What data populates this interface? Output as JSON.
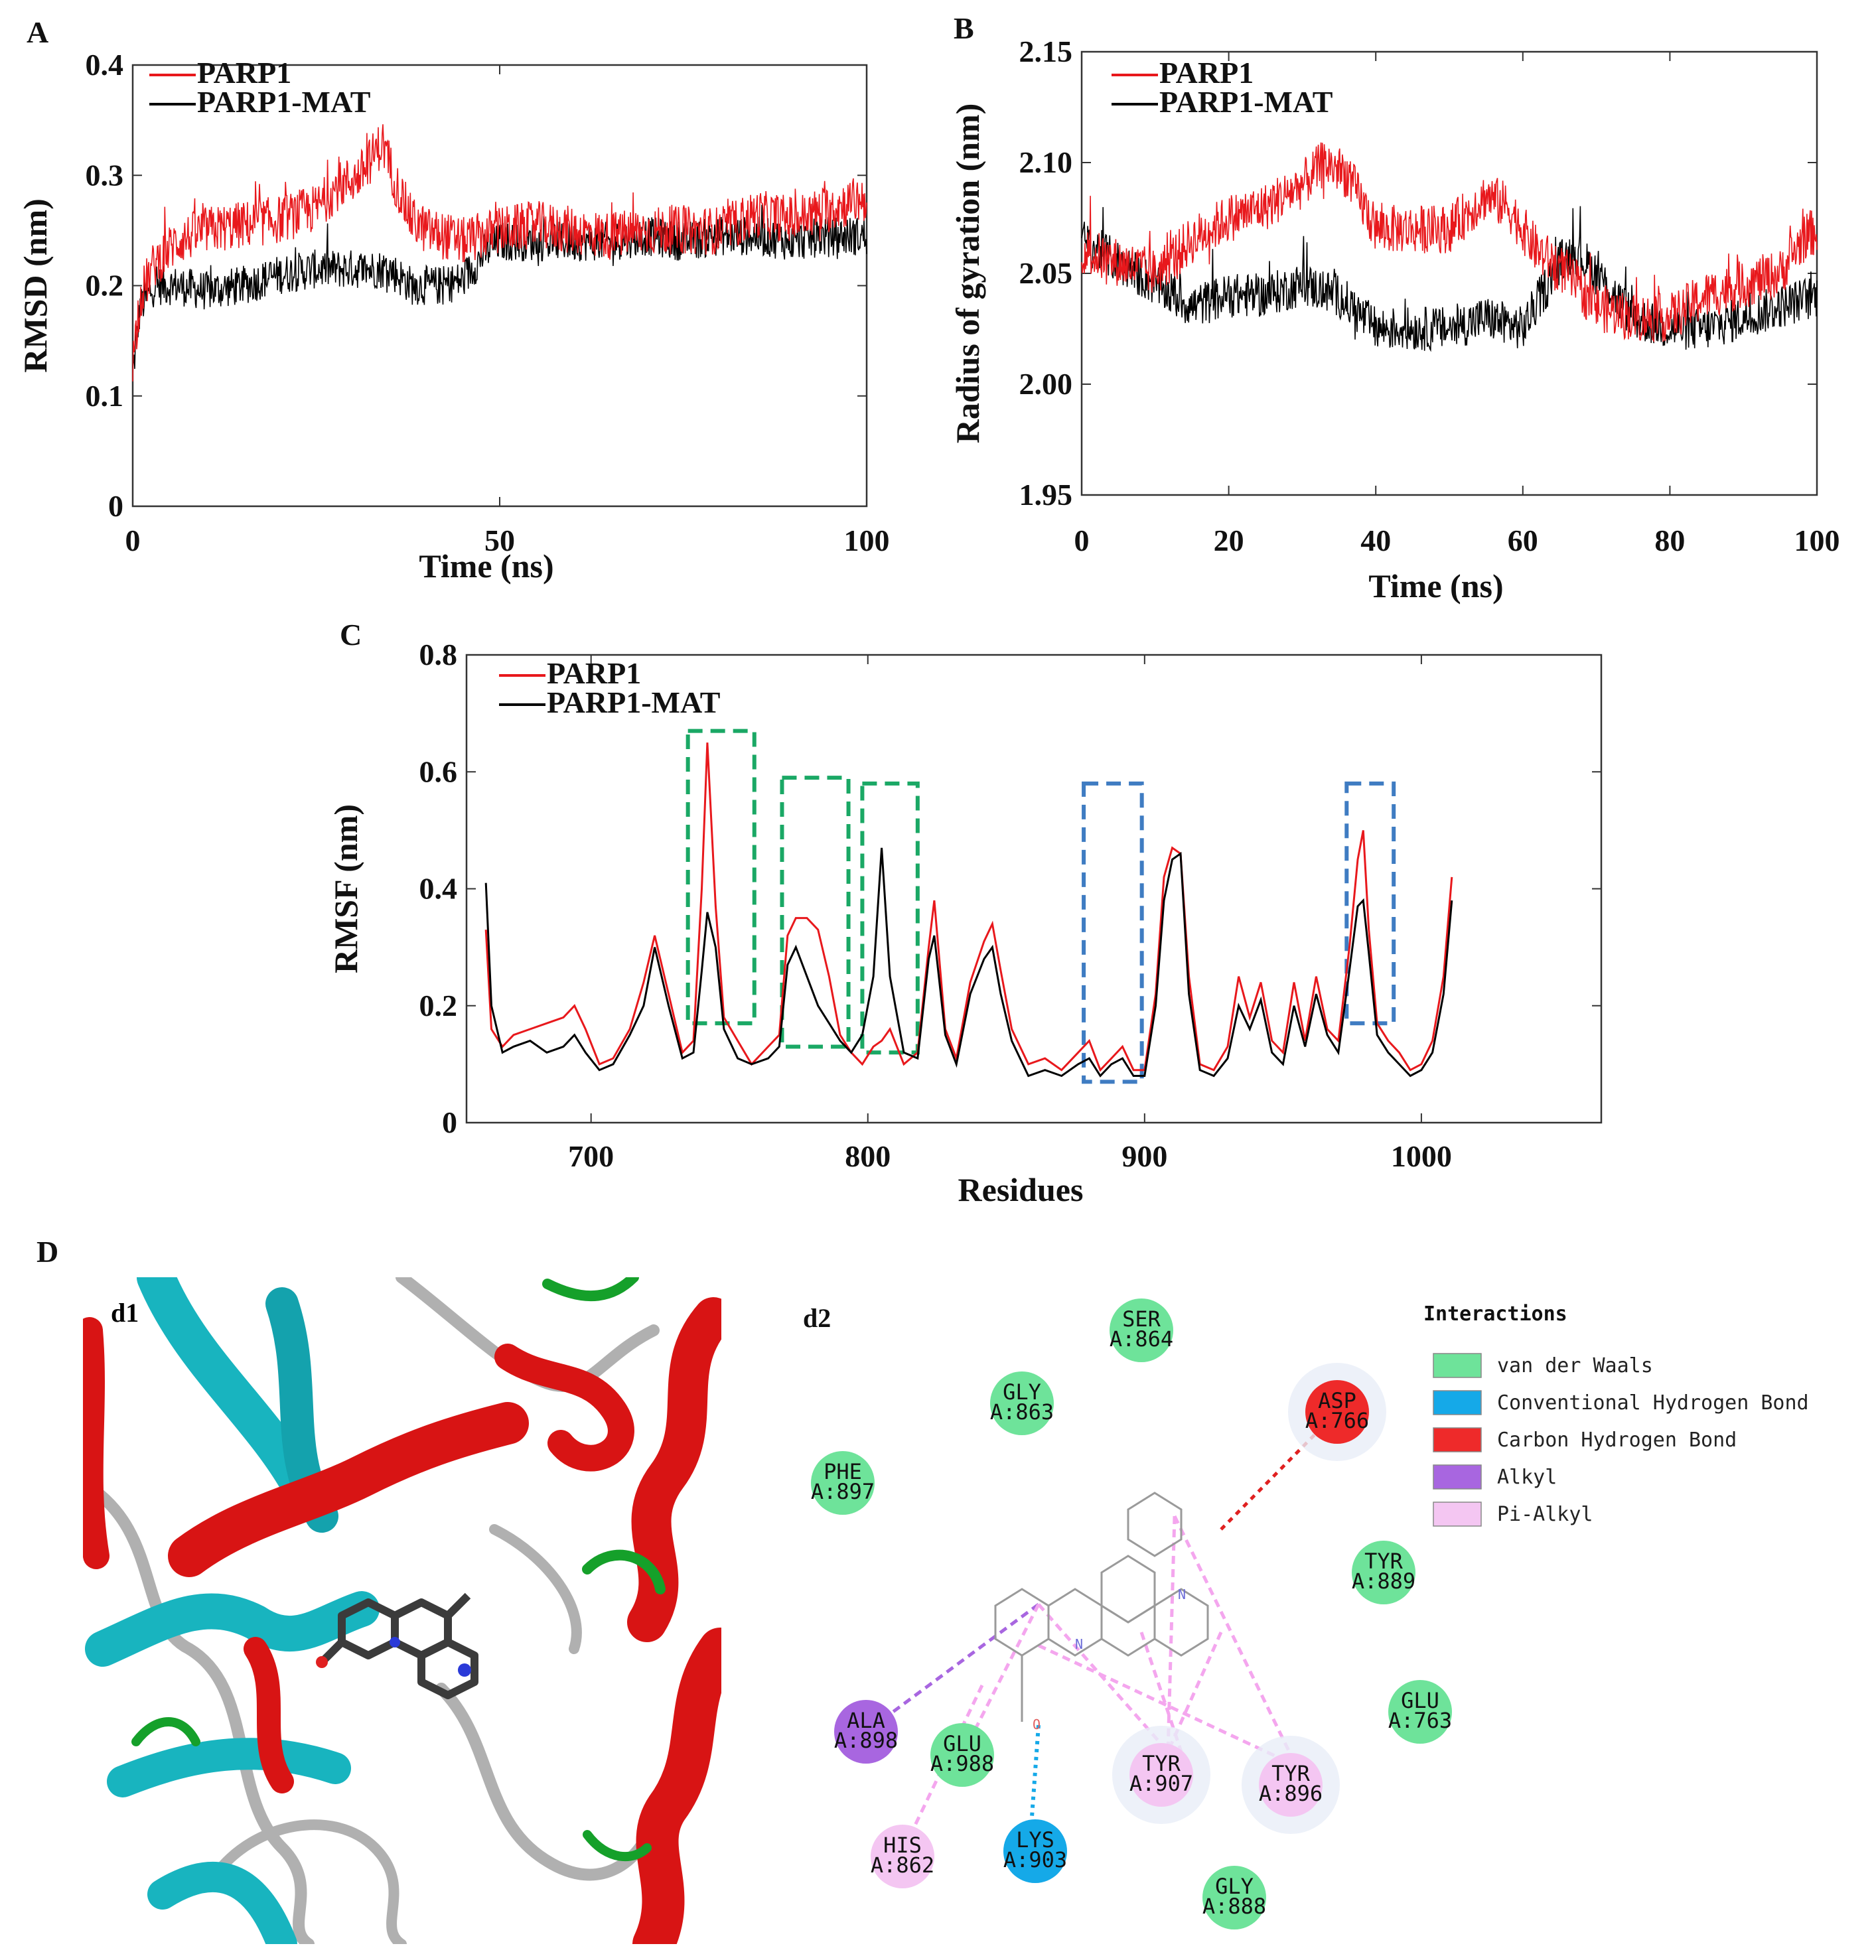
{
  "colors": {
    "parp1": "#e8181c",
    "parp1_mat": "#000000",
    "axis": "#333333",
    "vdw": "#6ee39a",
    "conv_hbond": "#15a9e8",
    "carbon_hbond": "#ee2a2a",
    "alkyl": "#a866e0",
    "pi_alkyl": "#f4c6f2",
    "box_green": "#1aa865",
    "box_blue": "#3f7cc2",
    "helix": "#d81414",
    "sheet": "#18b4bf",
    "coil": "#b8b8b8",
    "turn": "#15a02a"
  },
  "panel_labels": {
    "a": "A",
    "b": "B",
    "c": "C",
    "d": "D",
    "d1": "d1",
    "d2": "d2"
  },
  "chart_data": [
    {
      "id": "A",
      "type": "line",
      "title": "",
      "xlabel": "Time (ns)",
      "ylabel": "RMSD (nm)",
      "xlim": [
        0,
        100
      ],
      "ylim": [
        0,
        0.4
      ],
      "xticks": [
        0,
        50,
        100
      ],
      "xtick_labels": [
        "0",
        "50",
        "100"
      ],
      "yticks": [
        0,
        0.1,
        0.2,
        0.3,
        0.4
      ],
      "ytick_labels": [
        "0",
        "0.1",
        "0.2",
        "0.3",
        "0.4"
      ],
      "legend": [
        "PARP1",
        "PARP1-MAT"
      ],
      "legend_position": "top-left",
      "series": [
        {
          "name": "PARP1",
          "color": "#e8181c",
          "noise": 0.022,
          "x": [
            0,
            1,
            3,
            6,
            10,
            15,
            20,
            25,
            28,
            31,
            34,
            36,
            38,
            40,
            45,
            50,
            55,
            60,
            65,
            70,
            75,
            80,
            85,
            90,
            95,
            100
          ],
          "y": [
            0.13,
            0.19,
            0.22,
            0.24,
            0.25,
            0.255,
            0.26,
            0.27,
            0.29,
            0.3,
            0.33,
            0.29,
            0.26,
            0.25,
            0.24,
            0.25,
            0.255,
            0.25,
            0.245,
            0.25,
            0.25,
            0.25,
            0.265,
            0.26,
            0.27,
            0.28
          ]
        },
        {
          "name": "PARP1-MAT",
          "color": "#000000",
          "noise": 0.018,
          "x": [
            0,
            1,
            3,
            6,
            10,
            15,
            20,
            25,
            30,
            35,
            38,
            42,
            45,
            48,
            50,
            55,
            60,
            65,
            70,
            75,
            80,
            85,
            90,
            95,
            100
          ],
          "y": [
            0.12,
            0.18,
            0.2,
            0.2,
            0.195,
            0.2,
            0.21,
            0.215,
            0.215,
            0.215,
            0.2,
            0.2,
            0.205,
            0.23,
            0.24,
            0.24,
            0.24,
            0.24,
            0.245,
            0.24,
            0.245,
            0.245,
            0.24,
            0.245,
            0.245
          ]
        }
      ]
    },
    {
      "id": "B",
      "type": "line",
      "title": "",
      "xlabel": "Time (ns)",
      "ylabel": "Radius of gyration (nm)",
      "xlim": [
        0,
        100
      ],
      "ylim": [
        1.95,
        2.15
      ],
      "xticks": [
        0,
        20,
        40,
        60,
        80,
        100
      ],
      "xtick_labels": [
        "0",
        "20",
        "40",
        "60",
        "80",
        "100"
      ],
      "yticks": [
        1.95,
        2.0,
        2.05,
        2.1,
        2.15
      ],
      "ytick_labels": [
        "1.95",
        "2.00",
        "2.05",
        "2.10",
        "2.15"
      ],
      "legend": [
        "PARP1",
        "PARP1-MAT"
      ],
      "legend_position": "top-left",
      "series": [
        {
          "name": "PARP1",
          "color": "#e8181c",
          "noise": 0.011,
          "x": [
            0,
            5,
            10,
            15,
            20,
            25,
            30,
            33,
            36,
            40,
            45,
            50,
            55,
            58,
            62,
            66,
            70,
            75,
            80,
            85,
            90,
            95,
            98,
            100
          ],
          "y": [
            2.06,
            2.055,
            2.05,
            2.065,
            2.075,
            2.08,
            2.09,
            2.1,
            2.095,
            2.07,
            2.07,
            2.07,
            2.085,
            2.08,
            2.06,
            2.05,
            2.035,
            2.03,
            2.03,
            2.04,
            2.045,
            2.05,
            2.065,
            2.07
          ]
        },
        {
          "name": "PARP1-MAT",
          "color": "#000000",
          "noise": 0.01,
          "x": [
            0,
            5,
            10,
            15,
            20,
            25,
            30,
            35,
            40,
            45,
            50,
            55,
            60,
            65,
            67,
            70,
            75,
            80,
            85,
            90,
            95,
            100
          ],
          "y": [
            2.065,
            2.055,
            2.045,
            2.035,
            2.04,
            2.04,
            2.045,
            2.04,
            2.025,
            2.025,
            2.025,
            2.03,
            2.025,
            2.055,
            2.06,
            2.05,
            2.03,
            2.025,
            2.025,
            2.03,
            2.035,
            2.04
          ]
        }
      ]
    },
    {
      "id": "C",
      "type": "line",
      "title": "",
      "xlabel": "Residues",
      "ylabel": "RMSF (nm)",
      "xlim": [
        655,
        1065
      ],
      "ylim": [
        0,
        0.8
      ],
      "xticks": [
        700,
        800,
        900,
        1000
      ],
      "xtick_labels": [
        "700",
        "800",
        "900",
        "1000"
      ],
      "yticks": [
        0,
        0.2,
        0.4,
        0.6,
        0.8
      ],
      "ytick_labels": [
        "0",
        "0.2",
        "0.4",
        "0.6",
        "0.8"
      ],
      "legend": [
        "PARP1",
        "PARP1-MAT"
      ],
      "legend_position": "top-left",
      "series": [
        {
          "name": "PARP1",
          "color": "#e8181c",
          "x": [
            662,
            664,
            668,
            672,
            678,
            684,
            690,
            694,
            698,
            703,
            708,
            714,
            719,
            723,
            728,
            733,
            737,
            740,
            742,
            745,
            748,
            753,
            758,
            764,
            768,
            771,
            774,
            778,
            782,
            786,
            790,
            794,
            798,
            802,
            805,
            808,
            813,
            818,
            822,
            824,
            828,
            832,
            837,
            842,
            845,
            848,
            852,
            858,
            864,
            870,
            876,
            880,
            884,
            888,
            892,
            896,
            900,
            904,
            907,
            910,
            913,
            916,
            920,
            925,
            930,
            934,
            938,
            942,
            946,
            950,
            954,
            958,
            962,
            966,
            970,
            974,
            977,
            979,
            981,
            984,
            988,
            992,
            996,
            1000,
            1004,
            1008,
            1011
          ],
          "y": [
            0.33,
            0.16,
            0.13,
            0.15,
            0.16,
            0.17,
            0.18,
            0.2,
            0.16,
            0.1,
            0.11,
            0.16,
            0.24,
            0.32,
            0.22,
            0.12,
            0.14,
            0.4,
            0.65,
            0.37,
            0.18,
            0.14,
            0.1,
            0.13,
            0.15,
            0.32,
            0.35,
            0.35,
            0.33,
            0.25,
            0.15,
            0.12,
            0.1,
            0.13,
            0.14,
            0.16,
            0.1,
            0.12,
            0.3,
            0.38,
            0.16,
            0.11,
            0.24,
            0.31,
            0.34,
            0.26,
            0.16,
            0.1,
            0.11,
            0.09,
            0.12,
            0.14,
            0.09,
            0.11,
            0.13,
            0.09,
            0.09,
            0.22,
            0.42,
            0.47,
            0.46,
            0.25,
            0.1,
            0.09,
            0.13,
            0.25,
            0.18,
            0.24,
            0.14,
            0.12,
            0.24,
            0.14,
            0.25,
            0.16,
            0.14,
            0.3,
            0.45,
            0.5,
            0.33,
            0.17,
            0.14,
            0.12,
            0.09,
            0.1,
            0.14,
            0.25,
            0.42
          ]
        },
        {
          "name": "PARP1-MAT",
          "color": "#000000",
          "x": [
            662,
            664,
            668,
            672,
            678,
            684,
            690,
            694,
            698,
            703,
            708,
            714,
            719,
            723,
            728,
            733,
            737,
            740,
            742,
            745,
            748,
            753,
            758,
            764,
            768,
            771,
            774,
            778,
            782,
            786,
            790,
            794,
            798,
            802,
            805,
            808,
            813,
            818,
            822,
            824,
            828,
            832,
            837,
            842,
            845,
            848,
            852,
            858,
            864,
            870,
            876,
            880,
            884,
            888,
            892,
            896,
            900,
            904,
            907,
            910,
            913,
            916,
            920,
            925,
            930,
            934,
            938,
            942,
            946,
            950,
            954,
            958,
            962,
            966,
            970,
            974,
            977,
            979,
            981,
            984,
            988,
            992,
            996,
            1000,
            1004,
            1008,
            1011
          ],
          "y": [
            0.41,
            0.2,
            0.12,
            0.13,
            0.14,
            0.12,
            0.13,
            0.15,
            0.12,
            0.09,
            0.1,
            0.15,
            0.2,
            0.3,
            0.2,
            0.11,
            0.12,
            0.26,
            0.36,
            0.3,
            0.16,
            0.11,
            0.1,
            0.11,
            0.13,
            0.27,
            0.3,
            0.25,
            0.2,
            0.17,
            0.14,
            0.12,
            0.15,
            0.25,
            0.47,
            0.25,
            0.12,
            0.11,
            0.28,
            0.32,
            0.15,
            0.1,
            0.22,
            0.28,
            0.3,
            0.22,
            0.14,
            0.08,
            0.09,
            0.08,
            0.1,
            0.11,
            0.08,
            0.1,
            0.11,
            0.08,
            0.08,
            0.2,
            0.38,
            0.45,
            0.46,
            0.22,
            0.09,
            0.08,
            0.11,
            0.2,
            0.16,
            0.21,
            0.12,
            0.1,
            0.2,
            0.13,
            0.22,
            0.15,
            0.12,
            0.26,
            0.37,
            0.38,
            0.29,
            0.15,
            0.12,
            0.1,
            0.08,
            0.09,
            0.12,
            0.22,
            0.38
          ]
        }
      ],
      "highlight_boxes": [
        {
          "color": "green",
          "x": [
            735,
            759
          ],
          "y": [
            0.17,
            0.67
          ]
        },
        {
          "color": "green",
          "x": [
            769,
            793
          ],
          "y": [
            0.13,
            0.59
          ]
        },
        {
          "color": "green",
          "x": [
            798,
            818
          ],
          "y": [
            0.12,
            0.58
          ]
        },
        {
          "color": "blue",
          "x": [
            878,
            899
          ],
          "y": [
            0.07,
            0.58
          ]
        },
        {
          "color": "blue",
          "x": [
            973,
            990
          ],
          "y": [
            0.17,
            0.58
          ]
        }
      ]
    }
  ],
  "interactions": {
    "title": "Interactions",
    "legend": [
      {
        "label": "van der Waals",
        "color": "#6ee39a"
      },
      {
        "label": "Conventional Hydrogen Bond",
        "color": "#15a9e8"
      },
      {
        "label": "Carbon Hydrogen Bond",
        "color": "#ee2a2a"
      },
      {
        "label": "Alkyl",
        "color": "#a866e0"
      },
      {
        "label": "Pi-Alkyl",
        "color": "#f4c6f2"
      }
    ],
    "residues": [
      {
        "name": "SER",
        "id": "A:864",
        "type": "vdw"
      },
      {
        "name": "GLY",
        "id": "A:863",
        "type": "vdw"
      },
      {
        "name": "ASP",
        "id": "A:766",
        "type": "carbon_hbond"
      },
      {
        "name": "PHE",
        "id": "A:897",
        "type": "vdw"
      },
      {
        "name": "TYR",
        "id": "A:889",
        "type": "vdw"
      },
      {
        "name": "GLU",
        "id": "A:763",
        "type": "vdw"
      },
      {
        "name": "ALA",
        "id": "A:898",
        "type": "alkyl"
      },
      {
        "name": "GLU",
        "id": "A:988",
        "type": "vdw"
      },
      {
        "name": "TYR",
        "id": "A:907",
        "type": "pi_alkyl"
      },
      {
        "name": "TYR",
        "id": "A:896",
        "type": "pi_alkyl"
      },
      {
        "name": "HIS",
        "id": "A:862",
        "type": "pi_alkyl"
      },
      {
        "name": "LYS",
        "id": "A:903",
        "type": "conv_hbond"
      },
      {
        "name": "GLY",
        "id": "A:888",
        "type": "vdw"
      }
    ],
    "ligand_atoms": {
      "n1": "N",
      "n2": "N",
      "o": "O"
    }
  }
}
